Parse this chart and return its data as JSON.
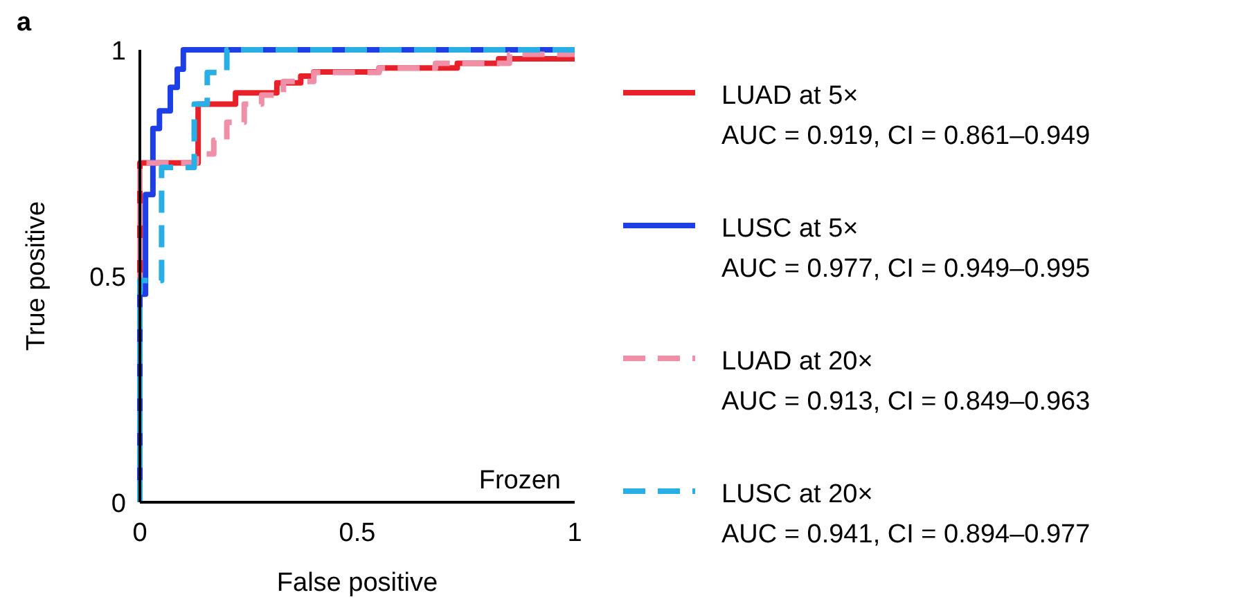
{
  "chart_data": {
    "type": "line",
    "xlabel": "False positive",
    "ylabel": "True positive",
    "xlim": [
      0,
      1
    ],
    "ylim": [
      0,
      1
    ],
    "xticks": [
      0,
      0.5,
      1
    ],
    "yticks": [
      0,
      0.5,
      1
    ],
    "legend": "right",
    "annotations": [
      "a",
      "Frozen"
    ],
    "series": [
      {
        "name": "LUAD at 5×\nAUC = 0.919, CI = 0.861–0.949",
        "color": "#e8202a",
        "line_style": "solid",
        "x": [
          0,
          0,
          0.134,
          0.134,
          0.22,
          0.22,
          0.315,
          0.315,
          0.37,
          0.37,
          0.4,
          0.4,
          0.55,
          0.55,
          0.73,
          0.73,
          0.825,
          0.825,
          1
        ],
        "values": [
          0,
          0.75,
          0.75,
          0.88,
          0.88,
          0.905,
          0.905,
          0.927,
          0.927,
          0.942,
          0.942,
          0.951,
          0.951,
          0.96,
          0.96,
          0.97,
          0.97,
          0.98,
          0.98
        ]
      },
      {
        "name": "LUSC at 5×\nAUC = 0.977, CI = 0.949–0.995",
        "color": "#1f3fe6",
        "line_style": "solid",
        "x": [
          0,
          0,
          0.013,
          0.013,
          0.03,
          0.03,
          0.045,
          0.045,
          0.07,
          0.07,
          0.086,
          0.086,
          0.1,
          0.1,
          1
        ],
        "values": [
          0,
          0.46,
          0.46,
          0.68,
          0.68,
          0.826,
          0.826,
          0.865,
          0.865,
          0.917,
          0.917,
          0.957,
          0.957,
          1,
          1
        ]
      },
      {
        "name": "LUAD at 20×\nAUC = 0.913, CI = 0.849–0.963",
        "color": "#f08fa8",
        "line_style": "dashed",
        "x": [
          0,
          0,
          0.13,
          0.13,
          0.17,
          0.17,
          0.2,
          0.2,
          0.24,
          0.24,
          0.28,
          0.28,
          0.33,
          0.33,
          0.4,
          0.4,
          0.55,
          0.55,
          0.68,
          0.68,
          0.85,
          0.85,
          1
        ],
        "values": [
          0,
          0.75,
          0.75,
          0.77,
          0.77,
          0.8,
          0.8,
          0.84,
          0.84,
          0.88,
          0.88,
          0.9,
          0.9,
          0.93,
          0.93,
          0.95,
          0.95,
          0.96,
          0.96,
          0.97,
          0.97,
          0.99,
          0.99
        ]
      },
      {
        "name": "LUSC at 20×\nAUC = 0.941, CI = 0.894–0.977",
        "color": "#29aee6",
        "line_style": "dashed",
        "x": [
          0,
          0,
          0.05,
          0.05,
          0.125,
          0.125,
          0.155,
          0.155,
          0.2,
          0.2,
          1
        ],
        "values": [
          0,
          0.49,
          0.49,
          0.74,
          0.74,
          0.88,
          0.88,
          0.95,
          0.95,
          1,
          1
        ]
      }
    ]
  }
}
